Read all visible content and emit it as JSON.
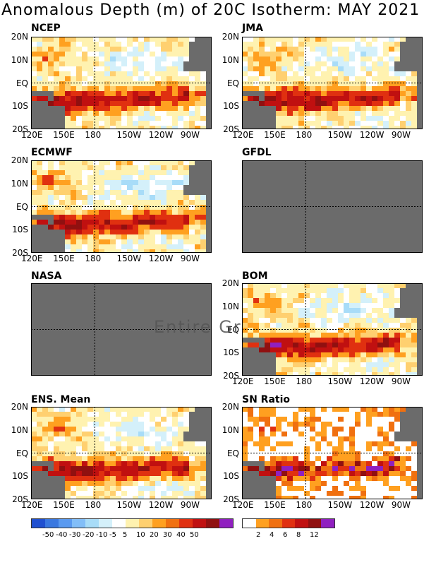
{
  "title": "Anomalous Depth (m) of 20C Isotherm: MAY 2021",
  "panels": {
    "ncep": "NCEP",
    "jma": "JMA",
    "ecmwf": "ECMWF",
    "gfdl": "GFDL",
    "nasa": "NASA",
    "bom": "BOM",
    "ens": "ENS. Mean",
    "sn": "SN Ratio"
  },
  "lat_labels": [
    "20N",
    "10N",
    "EQ",
    "10S",
    "20S"
  ],
  "lon_labels": [
    "120E",
    "150E",
    "180",
    "150W",
    "120W",
    "90W"
  ],
  "watermark": "Entire Gr",
  "anomaly_colorbar": {
    "colors": [
      "#2050d0",
      "#3a78e0",
      "#5a9af0",
      "#82bef8",
      "#a8dcf8",
      "#d4f0fa",
      "#ffffff",
      "#fff2b0",
      "#ffd070",
      "#ffa020",
      "#f07010",
      "#e03010",
      "#c01010",
      "#901010",
      "#9020c0"
    ],
    "labels": [
      "-50",
      "-40",
      "-30",
      "-20",
      "-10",
      "-5",
      "5",
      "10",
      "20",
      "30",
      "40",
      "50"
    ]
  },
  "sn_colorbar": {
    "colors": [
      "#ffffff",
      "#ffa020",
      "#f07010",
      "#e03010",
      "#c01010",
      "#901010",
      "#9020c0"
    ],
    "labels": [
      "2",
      "4",
      "6",
      "8",
      "12"
    ]
  },
  "colors": {
    "land": "#6b6b6b",
    "missing": "#6b6b6b"
  }
}
